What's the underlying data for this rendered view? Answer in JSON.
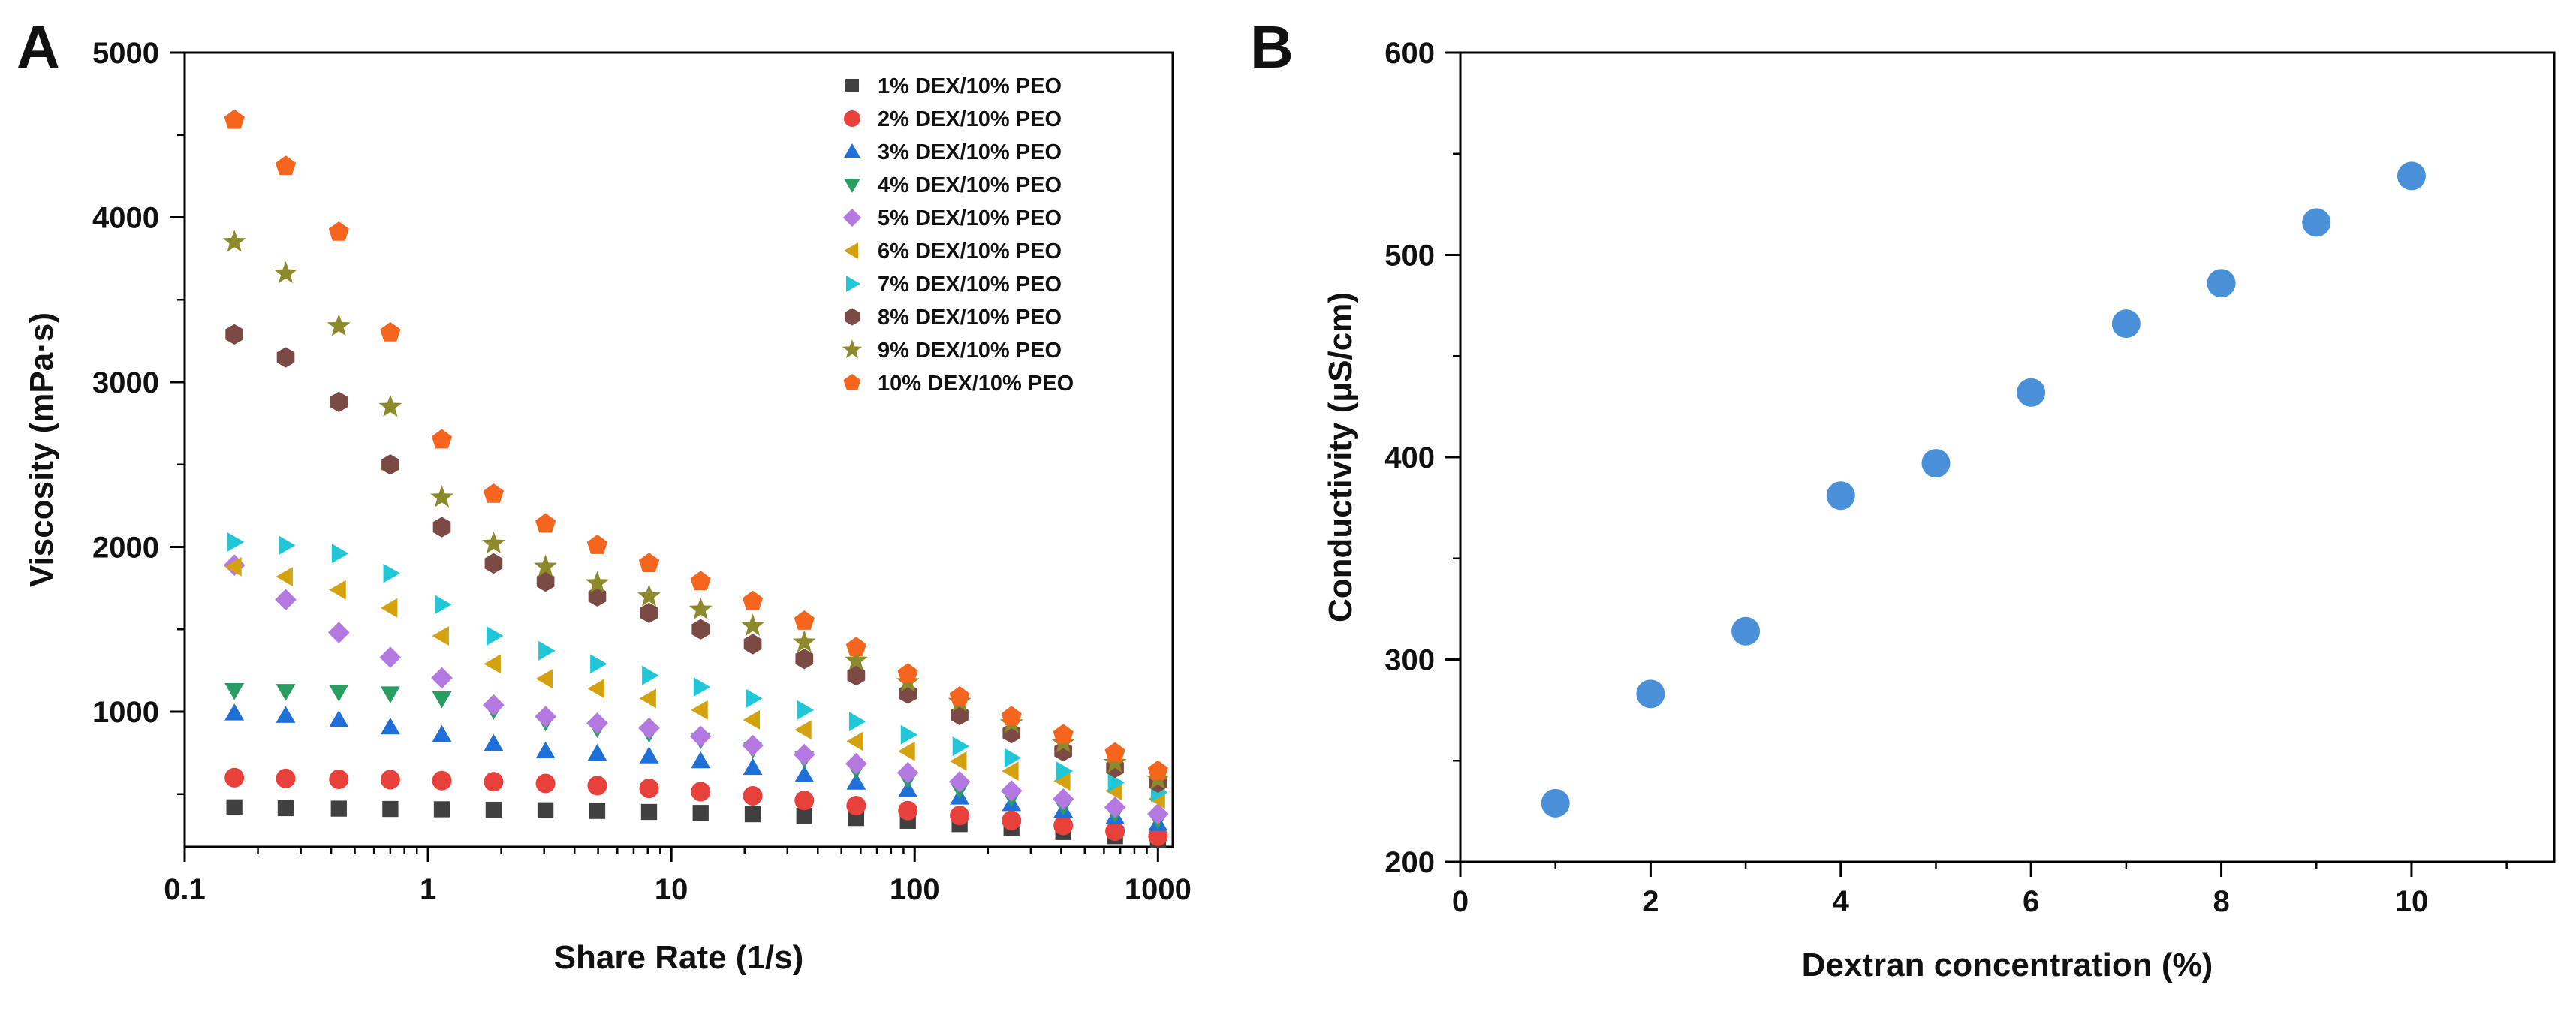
{
  "figure": {
    "panel_a_letter": "A",
    "panel_b_letter": "B"
  },
  "chart_data": [
    {
      "panel": "A",
      "type": "scatter",
      "xscale": "log",
      "title": "",
      "xlabel": "Share Rate (1/s)",
      "ylabel": "Viscosity (mPa·s)",
      "xlim": [
        0.1,
        1150
      ],
      "ylim": [
        180,
        5000
      ],
      "xticks": [
        0.1,
        1,
        10,
        100,
        1000
      ],
      "xtick_labels": [
        "0.1",
        "1",
        "10",
        "100",
        "1000"
      ],
      "yticks": [
        1000,
        2000,
        3000,
        4000,
        5000
      ],
      "ytick_labels": [
        "1000",
        "2000",
        "3000",
        "4000",
        "5000"
      ],
      "grid": false,
      "legend_position": "top-right",
      "x": [
        0.16,
        0.26,
        0.43,
        0.7,
        1.14,
        1.86,
        3.04,
        4.96,
        8.1,
        13.2,
        21.6,
        35.2,
        57.5,
        93.8,
        153,
        250,
        408,
        666,
        1000
      ],
      "series": [
        {
          "name": "1% DEX/10% PEO",
          "marker": "square",
          "color": "#404040",
          "values": [
            420,
            415,
            412,
            410,
            408,
            405,
            402,
            398,
            392,
            386,
            378,
            368,
            355,
            338,
            318,
            295,
            270,
            245,
            220
          ]
        },
        {
          "name": "2% DEX/10% PEO",
          "marker": "circle",
          "color": "#e8413c",
          "values": [
            600,
            595,
            590,
            588,
            582,
            575,
            565,
            552,
            535,
            515,
            490,
            462,
            430,
            400,
            370,
            340,
            310,
            275,
            245
          ]
        },
        {
          "name": "3% DEX/10% PEO",
          "marker": "triangle-up",
          "color": "#1f6fd8",
          "values": [
            990,
            975,
            950,
            905,
            860,
            805,
            760,
            745,
            730,
            700,
            660,
            615,
            570,
            525,
            480,
            440,
            400,
            360,
            320
          ]
        },
        {
          "name": "4% DEX/10% PEO",
          "marker": "triangle-down",
          "color": "#2a9d62",
          "values": [
            1130,
            1125,
            1120,
            1110,
            1080,
            1010,
            940,
            900,
            870,
            830,
            775,
            715,
            650,
            590,
            530,
            480,
            430,
            385,
            345
          ]
        },
        {
          "name": "5% DEX/10% PEO",
          "marker": "diamond",
          "color": "#b479e0",
          "values": [
            1890,
            1680,
            1480,
            1330,
            1205,
            1040,
            970,
            930,
            900,
            850,
            795,
            740,
            685,
            630,
            575,
            520,
            470,
            420,
            380
          ]
        },
        {
          "name": "6% DEX/10% PEO",
          "marker": "triangle-left",
          "color": "#d4a10f",
          "values": [
            1880,
            1820,
            1740,
            1630,
            1460,
            1290,
            1200,
            1140,
            1080,
            1010,
            950,
            890,
            820,
            760,
            700,
            640,
            580,
            520,
            470
          ]
        },
        {
          "name": "7% DEX/10% PEO",
          "marker": "triangle-right",
          "color": "#21c7d6",
          "values": [
            2030,
            2010,
            1960,
            1840,
            1650,
            1460,
            1370,
            1290,
            1220,
            1150,
            1080,
            1010,
            940,
            860,
            790,
            720,
            640,
            570,
            510
          ]
        },
        {
          "name": "8% DEX/10% PEO",
          "marker": "hexagon",
          "color": "#7b4a44",
          "values": [
            3290,
            3150,
            2880,
            2500,
            2120,
            1900,
            1790,
            1700,
            1600,
            1500,
            1410,
            1320,
            1220,
            1110,
            980,
            870,
            760,
            660,
            570
          ]
        },
        {
          "name": "9% DEX/10% PEO",
          "marker": "star",
          "color": "#8c8a2a",
          "values": [
            3850,
            3660,
            3340,
            2850,
            2300,
            2020,
            1880,
            1780,
            1700,
            1620,
            1520,
            1420,
            1310,
            1180,
            1060,
            930,
            810,
            690,
            590
          ]
        },
        {
          "name": "10% DEX/10% PEO",
          "marker": "pentagon",
          "color": "#f5651e",
          "values": [
            4590,
            4310,
            3910,
            3300,
            2650,
            2320,
            2140,
            2010,
            1900,
            1790,
            1670,
            1550,
            1390,
            1230,
            1090,
            970,
            860,
            750,
            640
          ]
        }
      ]
    },
    {
      "panel": "B",
      "type": "scatter",
      "title": "",
      "xlabel": "Dextran concentration (%)",
      "ylabel": "Conductivity (μS/cm)",
      "xlim": [
        0,
        11.5
      ],
      "ylim": [
        200,
        600
      ],
      "xticks": [
        0,
        2,
        4,
        6,
        8,
        10
      ],
      "xtick_labels": [
        "0",
        "2",
        "4",
        "6",
        "8",
        "10"
      ],
      "yticks": [
        200,
        300,
        400,
        500,
        600
      ],
      "ytick_labels": [
        "200",
        "300",
        "400",
        "500",
        "600"
      ],
      "grid": false,
      "series": [
        {
          "name": "Conductivity",
          "marker": "circle",
          "color": "#4a90d9",
          "x": [
            1,
            2,
            3,
            4,
            5,
            6,
            7,
            8,
            9,
            10
          ],
          "values": [
            229,
            283,
            314,
            381,
            397,
            432,
            466,
            486,
            516,
            539
          ]
        }
      ]
    }
  ]
}
